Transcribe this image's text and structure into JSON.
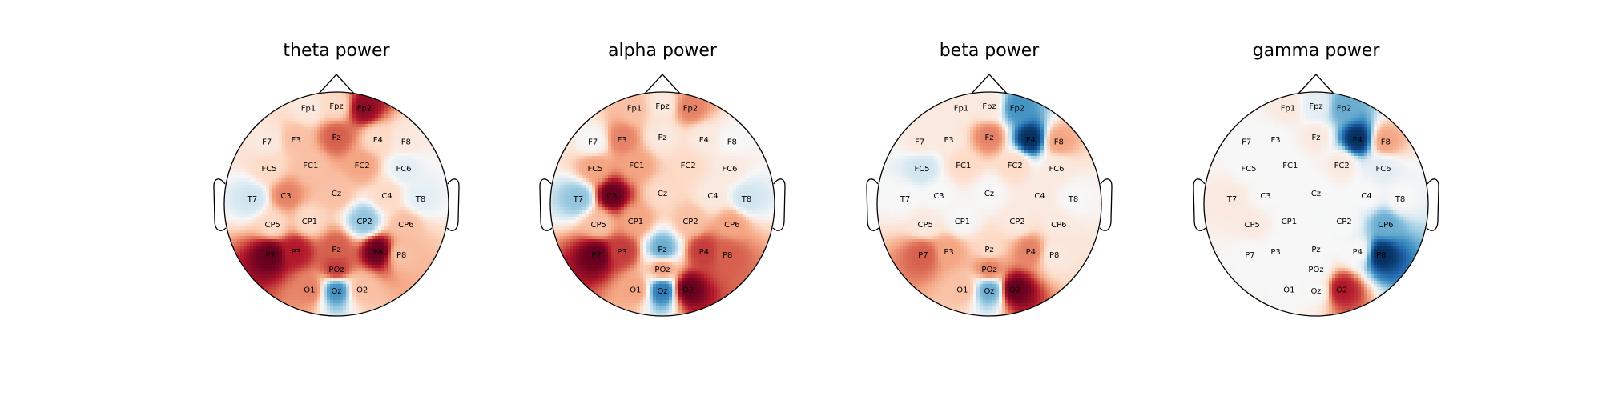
{
  "chart_data": {
    "type": "heatmap",
    "subtype": "topomap",
    "colormap": [
      "#67001f",
      "#b2182b",
      "#d6604d",
      "#f4a582",
      "#fddbc7",
      "#f7f7f7",
      "#d1e5f0",
      "#92c5de",
      "#4393c3",
      "#2166ac",
      "#053061"
    ],
    "channels": [
      {
        "name": "Fp1",
        "x": -0.25,
        "y": 0.86
      },
      {
        "name": "Fpz",
        "x": 0.0,
        "y": 0.88
      },
      {
        "name": "Fp2",
        "x": 0.25,
        "y": 0.86
      },
      {
        "name": "F7",
        "x": -0.62,
        "y": 0.56
      },
      {
        "name": "F3",
        "x": -0.36,
        "y": 0.58
      },
      {
        "name": "Fz",
        "x": 0.0,
        "y": 0.6
      },
      {
        "name": "F4",
        "x": 0.37,
        "y": 0.58
      },
      {
        "name": "F8",
        "x": 0.62,
        "y": 0.56
      },
      {
        "name": "FC5",
        "x": -0.6,
        "y": 0.32
      },
      {
        "name": "FC1",
        "x": -0.23,
        "y": 0.35
      },
      {
        "name": "FC2",
        "x": 0.23,
        "y": 0.35
      },
      {
        "name": "FC6",
        "x": 0.6,
        "y": 0.32
      },
      {
        "name": "T7",
        "x": -0.75,
        "y": 0.05
      },
      {
        "name": "C3",
        "x": -0.45,
        "y": 0.08
      },
      {
        "name": "Cz",
        "x": 0.0,
        "y": 0.1
      },
      {
        "name": "C4",
        "x": 0.45,
        "y": 0.08
      },
      {
        "name": "T8",
        "x": 0.75,
        "y": 0.05
      },
      {
        "name": "CP5",
        "x": -0.57,
        "y": -0.18
      },
      {
        "name": "CP1",
        "x": -0.24,
        "y": -0.15
      },
      {
        "name": "CP2",
        "x": 0.25,
        "y": -0.15
      },
      {
        "name": "CP6",
        "x": 0.62,
        "y": -0.18
      },
      {
        "name": "P7",
        "x": -0.59,
        "y": -0.45
      },
      {
        "name": "P3",
        "x": -0.36,
        "y": -0.42
      },
      {
        "name": "Pz",
        "x": 0.0,
        "y": -0.4
      },
      {
        "name": "P4",
        "x": 0.37,
        "y": -0.42
      },
      {
        "name": "P8",
        "x": 0.58,
        "y": -0.45
      },
      {
        "name": "POz",
        "x": 0.0,
        "y": -0.58
      },
      {
        "name": "O1",
        "x": -0.24,
        "y": -0.76
      },
      {
        "name": "Oz",
        "x": 0.0,
        "y": -0.77
      },
      {
        "name": "O2",
        "x": 0.23,
        "y": -0.76
      }
    ],
    "panels": [
      {
        "title": "theta power",
        "values": [
          0.1,
          0.2,
          0.9,
          0.1,
          0.3,
          0.6,
          0.2,
          0.1,
          0.2,
          0.3,
          0.4,
          -0.1,
          -0.2,
          0.5,
          0.3,
          0.2,
          -0.1,
          0.2,
          0.2,
          -0.4,
          0.3,
          1.0,
          0.8,
          0.6,
          1.0,
          0.3,
          0.7,
          0.5,
          -0.6,
          0.3
        ]
      },
      {
        "title": "alpha power",
        "values": [
          0.3,
          0.1,
          0.5,
          0.0,
          0.5,
          0.1,
          0.1,
          0.0,
          0.4,
          0.4,
          0.2,
          0.1,
          -0.4,
          1.0,
          0.2,
          0.1,
          -0.2,
          0.3,
          0.4,
          0.3,
          0.4,
          1.0,
          0.7,
          -0.5,
          0.7,
          0.6,
          0.4,
          0.4,
          -0.7,
          1.0
        ]
      },
      {
        "title": "beta power",
        "values": [
          0.1,
          0.1,
          -0.6,
          0.1,
          0.1,
          0.5,
          -1.0,
          0.4,
          -0.2,
          0.2,
          0.2,
          0.1,
          0.0,
          0.0,
          0.0,
          0.1,
          0.0,
          0.1,
          0.0,
          0.1,
          0.1,
          0.6,
          0.4,
          0.2,
          0.5,
          0.1,
          0.5,
          0.3,
          -0.5,
          1.0
        ]
      },
      {
        "title": "gamma power",
        "values": [
          0.1,
          -0.1,
          -0.5,
          0.0,
          0.0,
          0.1,
          -1.0,
          0.4,
          0.0,
          0.0,
          0.1,
          -0.1,
          0.1,
          0.0,
          0.0,
          0.0,
          0.0,
          0.1,
          0.0,
          0.0,
          -0.5,
          0.0,
          0.0,
          0.0,
          0.0,
          -1.0,
          0.0,
          0.0,
          0.0,
          0.8
        ]
      }
    ]
  }
}
